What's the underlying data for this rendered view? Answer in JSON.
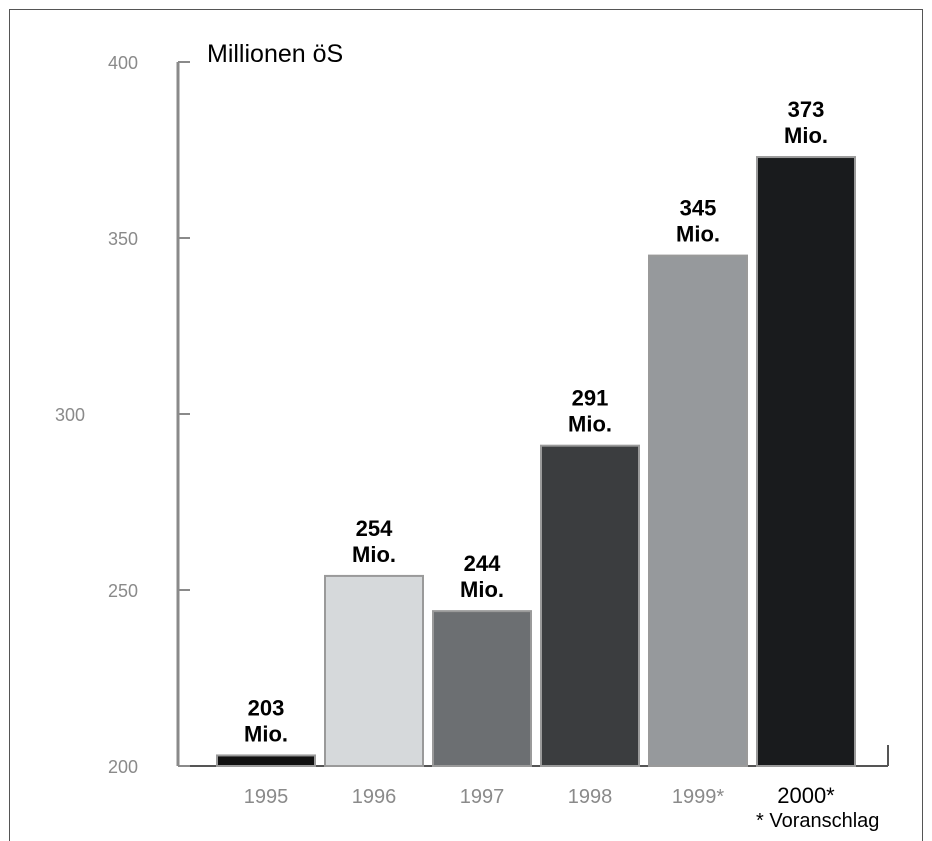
{
  "chart_data": {
    "type": "bar",
    "title": "",
    "ylabel": "Millionen öS",
    "xlabel": "",
    "categories": [
      "1995",
      "1996",
      "1997",
      "1998",
      "1999*",
      "2000*"
    ],
    "values": [
      203,
      254,
      244,
      291,
      345,
      373
    ],
    "value_labels": [
      "203\nMio.",
      "254\nMio.",
      "244\nMio.",
      "291\nMio.",
      "345\nMio.",
      "373\nMio."
    ],
    "ylim": [
      200,
      400
    ],
    "yticks": [
      200,
      250,
      300,
      350,
      400
    ],
    "ytick_labels": [
      "200",
      "250",
      "300",
      "350",
      "400"
    ],
    "bar_colors": [
      "#111111",
      "#d6d9db",
      "#6c6f72",
      "#3b3d3f",
      "#96999c",
      "#191b1d"
    ],
    "grid": false,
    "footnote": "* Voranschlag"
  }
}
